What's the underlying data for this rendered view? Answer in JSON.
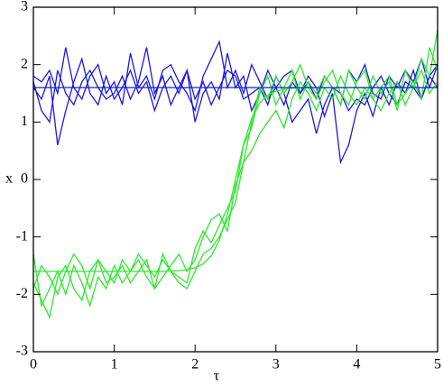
{
  "chart_data": {
    "type": "line",
    "xlabel": "τ",
    "ylabel": "x",
    "xlim": [
      0,
      5
    ],
    "ylim": [
      -3,
      3
    ],
    "xticks": [
      0,
      1,
      2,
      3,
      4,
      5
    ],
    "yticks": [
      -3,
      -2,
      -1,
      0,
      1,
      2,
      3
    ],
    "x": [
      0,
      0.1,
      0.2,
      0.3,
      0.4,
      0.5,
      0.6,
      0.7,
      0.8,
      0.9,
      1,
      1.1,
      1.2,
      1.3,
      1.4,
      1.5,
      1.6,
      1.7,
      1.8,
      1.9,
      2,
      2.1,
      2.2,
      2.3,
      2.4,
      2.5,
      2.6,
      2.7,
      2.8,
      2.9,
      3,
      3.1,
      3.2,
      3.3,
      3.4,
      3.5,
      3.6,
      3.7,
      3.8,
      3.9,
      4,
      4.1,
      4.2,
      4.3,
      4.4,
      4.5,
      4.6,
      4.7,
      4.8,
      4.9,
      5
    ],
    "series": [
      {
        "color": "#1a1add",
        "values": [
          1.8,
          1.7,
          1.9,
          1.5,
          2.3,
          1.6,
          1.4,
          1.8,
          2.0,
          1.5,
          1.7,
          1.3,
          2.2,
          1.6,
          1.8,
          1.4,
          1.9,
          2.0,
          1.7,
          1.5,
          1.2,
          1.8,
          2.1,
          2.4,
          1.6,
          1.9,
          1.5,
          2.0,
          1.7,
          1.4,
          1.6,
          1.8,
          1.9,
          1.5,
          1.7,
          1.4,
          1.8,
          1.6,
          1.3,
          1.9,
          1.7,
          2.0,
          1.5,
          1.4,
          1.8,
          1.6,
          1.9,
          1.7,
          2.1,
          1.6,
          2.0
        ]
      },
      {
        "color": "#1a1add",
        "values": [
          1.7,
          1.2,
          1.0,
          1.9,
          1.5,
          1.3,
          1.7,
          1.9,
          1.6,
          1.4,
          1.5,
          1.8,
          1.4,
          1.7,
          2.3,
          1.5,
          1.8,
          1.3,
          1.6,
          1.9,
          1.0,
          1.5,
          1.7,
          1.4,
          2.2,
          1.6,
          1.8,
          1.2,
          1.5,
          1.9,
          1.6,
          1.3,
          1.7,
          1.5,
          1.8,
          1.6,
          1.1,
          1.5,
          0.3,
          0.6,
          1.2,
          1.5,
          1.1,
          1.6,
          1.3,
          1.7,
          1.5,
          1.9,
          1.4,
          1.8,
          1.6
        ]
      },
      {
        "color": "#1a1add",
        "values": [
          1.6,
          1.4,
          1.8,
          0.6,
          1.2,
          1.7,
          2.1,
          1.5,
          1.3,
          1.8,
          1.4,
          1.6,
          1.9,
          1.5,
          1.7,
          1.2,
          1.6,
          1.8,
          1.5,
          1.9,
          1.4,
          1.7,
          1.3,
          1.6,
          1.9,
          1.8,
          1.4,
          1.5,
          1.6,
          1.3,
          1.8,
          1.5,
          1.0,
          1.2,
          1.4,
          0.8,
          1.3,
          1.6,
          1.5,
          1.2,
          1.4,
          1.3,
          1.6,
          1.8,
          1.5,
          1.3,
          1.7,
          1.6,
          1.4,
          1.8,
          2.0
        ]
      },
      {
        "color": "#2ee82e",
        "values": [
          -1.3,
          -2.2,
          -1.9,
          -1.6,
          -2.0,
          -1.5,
          -1.8,
          -2.2,
          -1.7,
          -1.9,
          -1.5,
          -1.8,
          -1.6,
          -1.4,
          -1.7,
          -1.9,
          -1.3,
          -1.6,
          -1.7,
          -1.8,
          -1.2,
          -0.9,
          -1.1,
          -0.8,
          -0.5,
          -0.2,
          0.6,
          0.9,
          1.5,
          1.8,
          1.3,
          1.6,
          1.9,
          1.4,
          1.7,
          1.5,
          1.8,
          1.6,
          1.3,
          1.9,
          1.6,
          1.4,
          1.8,
          1.5,
          1.7,
          1.2,
          1.9,
          1.6,
          2.1,
          1.8,
          2.6
        ]
      },
      {
        "color": "#2ee82e",
        "values": [
          -1.8,
          -2.1,
          -2.4,
          -1.7,
          -1.5,
          -1.9,
          -2.1,
          -1.6,
          -1.4,
          -1.8,
          -1.7,
          -1.5,
          -1.8,
          -1.6,
          -1.4,
          -1.9,
          -1.7,
          -1.5,
          -1.3,
          -1.6,
          -1.4,
          -1.0,
          -0.7,
          -0.6,
          -0.9,
          -0.1,
          0.3,
          1.0,
          1.6,
          1.4,
          1.8,
          1.5,
          1.7,
          2.0,
          1.6,
          1.4,
          1.7,
          1.9,
          1.5,
          1.3,
          1.7,
          1.9,
          1.4,
          1.6,
          1.8,
          1.3,
          1.5,
          1.7,
          1.4,
          2.3,
          1.9
        ]
      },
      {
        "color": "#2ee82e",
        "values": [
          -1.9,
          -1.5,
          -1.7,
          -2.0,
          -1.6,
          -1.3,
          -1.5,
          -1.9,
          -1.4,
          -1.6,
          -1.8,
          -1.4,
          -1.6,
          -1.3,
          -1.5,
          -1.7,
          -1.4,
          -1.6,
          -1.8,
          -1.9,
          -1.6,
          -1.3,
          -1.2,
          -1.0,
          -0.7,
          -0.4,
          0.3,
          0.5,
          0.8,
          1.0,
          1.2,
          0.9,
          1.4,
          1.7,
          1.5,
          1.2,
          1.6,
          1.4,
          1.8,
          1.5,
          1.3,
          1.6,
          1.4,
          1.2,
          1.5,
          1.7,
          1.3,
          1.6,
          1.9,
          1.5,
          1.7
        ]
      },
      {
        "color": "#2ee82e",
        "values": [
          -1.6,
          -1.6,
          -1.6,
          -1.6,
          -1.6,
          -1.6,
          -1.6,
          -1.6,
          -1.6,
          -1.6,
          -1.6,
          -1.6,
          -1.6,
          -1.6,
          -1.6,
          -1.6,
          -1.6,
          -1.59,
          -1.59,
          -1.57,
          -1.54,
          -1.47,
          -1.33,
          -1.06,
          -0.61,
          0,
          0.61,
          1.06,
          1.33,
          1.47,
          1.54,
          1.57,
          1.59,
          1.59,
          1.6,
          1.6,
          1.6,
          1.6,
          1.6,
          1.6,
          1.6,
          1.6,
          1.6,
          1.6,
          1.6,
          1.6,
          1.6,
          1.6,
          1.6,
          1.6,
          1.6
        ]
      },
      {
        "color": "#1a1add",
        "values": [
          1.6,
          1.6,
          1.6,
          1.6,
          1.6,
          1.6,
          1.6,
          1.6,
          1.6,
          1.6,
          1.6,
          1.6,
          1.6,
          1.6,
          1.6,
          1.6,
          1.6,
          1.6,
          1.6,
          1.6,
          1.6,
          1.6,
          1.6,
          1.6,
          1.6,
          1.6,
          1.6,
          1.6,
          1.6,
          1.6,
          1.6,
          1.6,
          1.6,
          1.6,
          1.6,
          1.6,
          1.6,
          1.6,
          1.6,
          1.6,
          1.6,
          1.6,
          1.6,
          1.6,
          1.6,
          1.6,
          1.6,
          1.6,
          1.6,
          1.6,
          1.6
        ]
      }
    ]
  }
}
